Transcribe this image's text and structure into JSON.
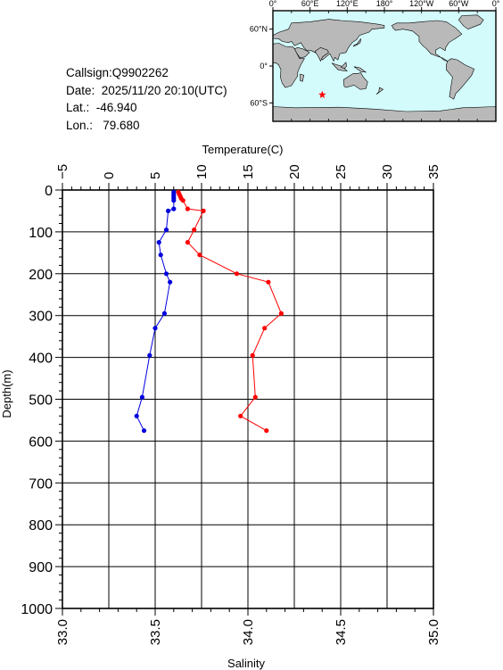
{
  "info": {
    "callsign": "Callsign:Q9902262",
    "date": "Date:  2025/11/20 20:10(UTC)",
    "lat": "Lat.:  -46.940",
    "lon": "Lon.:   79.680"
  },
  "map": {
    "lon_labels": [
      "0°",
      "60°E",
      "120°E",
      "180°",
      "120°W",
      "60°W",
      "0°"
    ],
    "lat_labels": [
      "60°N",
      "0°",
      "60°S"
    ],
    "station": {
      "lat": -46.94,
      "lon": 79.68
    },
    "ocean_color": "#d4fbfc",
    "land_color": "#b9b9b9",
    "marker_color": "#ff0000"
  },
  "chart_data": {
    "type": "line",
    "top_axis": {
      "label": "Temperature(C)",
      "range": [
        -5,
        35
      ],
      "ticks": [
        "-5",
        "0",
        "5",
        "10",
        "15",
        "20",
        "25",
        "30",
        "35"
      ]
    },
    "bottom_axis": {
      "label": "Salinity",
      "range": [
        33.0,
        35.0
      ],
      "ticks": [
        "33.0",
        "33.5",
        "34.0",
        "34.5",
        "35.0"
      ]
    },
    "y_axis": {
      "label": "Depth(m)",
      "range": [
        0,
        1000
      ],
      "inverted": true,
      "ticks": [
        "0",
        "100",
        "200",
        "300",
        "400",
        "500",
        "600",
        "700",
        "800",
        "900",
        "1000"
      ]
    },
    "grid": true,
    "series": [
      {
        "axis": "temperature",
        "color": "#ff0000",
        "depth": [
          5,
          10,
          15,
          20,
          25,
          45,
          50,
          95,
          125,
          155,
          200,
          220,
          295,
          330,
          395,
          495,
          540,
          575
        ],
        "values": [
          7.5,
          7.6,
          7.7,
          7.8,
          8.0,
          8.5,
          10.2,
          9.2,
          8.5,
          9.8,
          13.8,
          17.2,
          18.6,
          16.8,
          15.5,
          15.8,
          14.2,
          17.0
        ]
      },
      {
        "axis": "salinity",
        "color": "#0000dd",
        "depth": [
          5,
          10,
          15,
          20,
          25,
          45,
          50,
          95,
          125,
          155,
          200,
          220,
          295,
          330,
          395,
          495,
          540,
          575
        ],
        "values": [
          33.6,
          33.6,
          33.6,
          33.6,
          33.6,
          33.6,
          33.57,
          33.56,
          33.52,
          33.53,
          33.56,
          33.58,
          33.55,
          33.5,
          33.47,
          33.43,
          33.4,
          33.44
        ]
      }
    ]
  }
}
